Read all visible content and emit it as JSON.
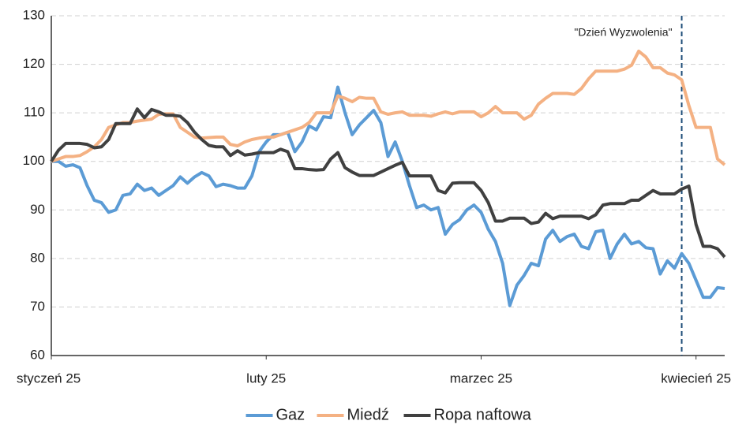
{
  "chart_data": {
    "type": "line",
    "x": [
      0,
      1,
      2,
      3,
      4,
      5,
      6,
      7,
      8,
      9,
      10,
      11,
      12,
      13,
      14,
      15,
      16,
      17,
      18,
      19,
      20,
      21,
      22,
      23,
      24,
      25,
      26,
      27,
      28,
      29,
      30,
      31,
      32,
      33,
      34,
      35,
      36,
      37,
      38,
      39,
      40,
      41,
      42,
      43,
      44,
      45,
      46,
      47,
      48,
      49,
      50,
      51,
      52,
      53,
      54,
      55,
      56,
      57,
      58,
      59,
      60,
      61,
      62,
      63,
      64,
      65,
      66,
      67,
      68,
      69,
      70,
      71,
      72,
      73,
      74,
      75,
      76,
      77,
      78,
      79,
      80,
      81,
      82,
      83,
      84,
      85,
      86,
      87,
      88,
      89,
      90,
      91,
      92,
      93,
      94
    ],
    "series": [
      {
        "name": "Gaz",
        "color": "#5b9bd5",
        "values": [
          100,
          100,
          99,
          99.3,
          98.7,
          95,
          92,
          91.5,
          89.5,
          90,
          93,
          93.3,
          95.3,
          94,
          94.5,
          93,
          94,
          95,
          96.8,
          95.5,
          96.8,
          97.7,
          97,
          94.8,
          95.3,
          95,
          94.5,
          94.5,
          97,
          102,
          104,
          105.5,
          105.5,
          106,
          102,
          104,
          107.3,
          106.5,
          109.2,
          109,
          115.3,
          110,
          105.5,
          107.5,
          109,
          110.5,
          108,
          101,
          104,
          100,
          95,
          90.5,
          91,
          90,
          90.5,
          85,
          87,
          88,
          90,
          91,
          89.5,
          86,
          83.5,
          79,
          70.3,
          74.5,
          76.5,
          79,
          78.5,
          84,
          85.8,
          83.5,
          84.5,
          85,
          82.5,
          82,
          85.5,
          85.8,
          80,
          83,
          85,
          83,
          83.5,
          82.2,
          82,
          76.8,
          79.5,
          78,
          81,
          79,
          75.5,
          72,
          72,
          74,
          73.8
        ]
      },
      {
        "name": "Miedź",
        "color": "#f4b183",
        "values": [
          100,
          100.5,
          101,
          101,
          101.2,
          102,
          103,
          104.5,
          107,
          107.5,
          108,
          108,
          108.3,
          108.5,
          108.7,
          109.7,
          109.8,
          109.8,
          107,
          106,
          105,
          104.8,
          104.9,
          105,
          105,
          103.5,
          103.2,
          104,
          104.5,
          104.8,
          105,
          105,
          105.5,
          106,
          106.5,
          107,
          108,
          110,
          110,
          110,
          113.5,
          113,
          112.3,
          113.2,
          113,
          113,
          110.2,
          109.7,
          110,
          110.2,
          109.5,
          109.5,
          109.5,
          109.3,
          109.8,
          110.2,
          109.8,
          110.2,
          110.2,
          110.2,
          109.2,
          110,
          111.3,
          110,
          110,
          110,
          108.7,
          109.5,
          111.8,
          113,
          114,
          114,
          114,
          113.8,
          115,
          117,
          118.6,
          118.6,
          118.6,
          118.6,
          119,
          119.8,
          122.7,
          121.5,
          119.3,
          119.3,
          118.2,
          117.8,
          116.8,
          111.5,
          107,
          107,
          107,
          100.5,
          99.3
        ]
      },
      {
        "name": "Ropa naftowa",
        "color": "#404040",
        "values": [
          100,
          102.3,
          103.7,
          103.7,
          103.7,
          103.5,
          102.8,
          103,
          104.5,
          107.8,
          107.8,
          107.8,
          110.8,
          109,
          110.7,
          110.2,
          109.5,
          109.5,
          109.3,
          108,
          106,
          104.5,
          103.3,
          103,
          103,
          101.2,
          102.2,
          101.3,
          101.5,
          101.8,
          101.8,
          101.8,
          102.5,
          102,
          98.5,
          98.5,
          98.3,
          98.2,
          98.3,
          100.5,
          101.8,
          98.7,
          97.8,
          97.1,
          97.1,
          97.1,
          97.8,
          98.5,
          99.2,
          99.8,
          97,
          97,
          97,
          97,
          94,
          93.5,
          95.5,
          95.6,
          95.6,
          95.6,
          94,
          91.5,
          87.7,
          87.7,
          88.3,
          88.3,
          88.3,
          87.2,
          87.5,
          89.3,
          88.2,
          88.7,
          88.7,
          88.7,
          88.7,
          88.2,
          89,
          91,
          91.3,
          91.3,
          91.3,
          92,
          92,
          93,
          94,
          93.3,
          93.3,
          93.3,
          94.3,
          94.9,
          87,
          82.5,
          82.5,
          82,
          80.3
        ]
      }
    ],
    "xlim": [
      0,
      94
    ],
    "xticks": [
      {
        "value": 0,
        "label": "styczeń 25"
      },
      {
        "value": 30,
        "label": "luty 25"
      },
      {
        "value": 60,
        "label": "marzec 25"
      },
      {
        "value": 90,
        "label": "kwiecień 25"
      }
    ],
    "ylim": [
      60,
      130
    ],
    "yticks": [
      60,
      70,
      80,
      90,
      100,
      110,
      120,
      130
    ],
    "grid": true,
    "legend": "bottom",
    "annotations": [
      {
        "text": "\"Dzień Wyzwolenia\"",
        "x": 88
      }
    ]
  }
}
